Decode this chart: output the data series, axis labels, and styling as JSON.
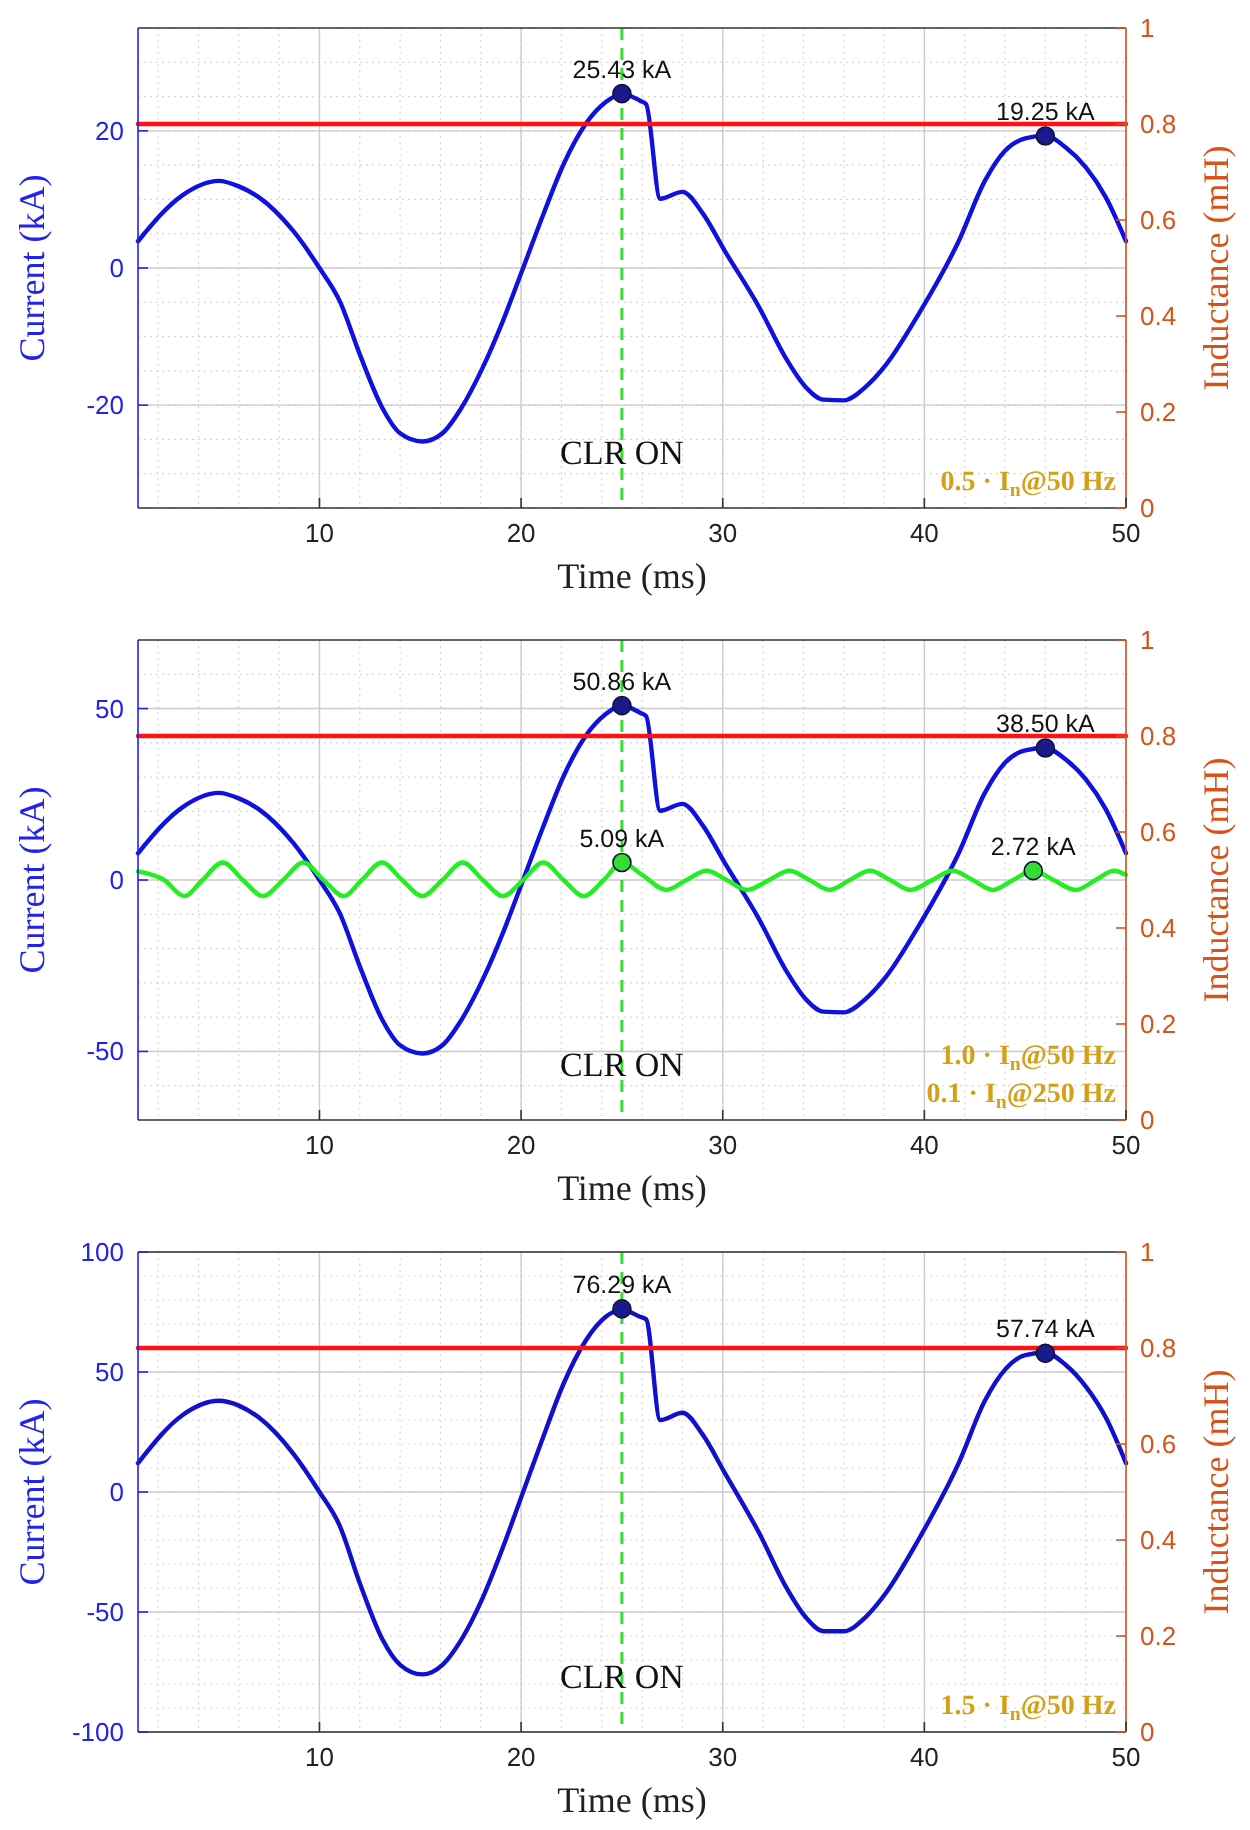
{
  "chart_data": [
    {
      "type": "line",
      "xlabel": "Time (ms)",
      "ylabel": "Current (kA)",
      "y2label": "Inductance (mH)",
      "xlim": [
        1,
        50
      ],
      "xticks": [
        10,
        20,
        30,
        40,
        50
      ],
      "ylim": [
        -35,
        35
      ],
      "yticks": [
        -20,
        0,
        20
      ],
      "y2lim": [
        0,
        1
      ],
      "y2ticks": [
        0,
        0.2,
        0.4,
        0.6,
        0.8,
        1
      ],
      "grid": true,
      "ref_lines": [
        {
          "axis": "x",
          "value": 25,
          "label": "CLR ON",
          "color": "#33dd33",
          "line_style": "dashed"
        }
      ],
      "annotations": [
        "0.5 · I$_{n}$@50 Hz"
      ],
      "series": [
        {
          "color": "#1111dd",
          "x": [
            1,
            3.2,
            5,
            6,
            7,
            8.7,
            10,
            11,
            12,
            13.1,
            14,
            15.1,
            16.1,
            17,
            18.1,
            19.1,
            20.1,
            21.1,
            22.1,
            23.2,
            24.2,
            25,
            25.9,
            26.2,
            26.9,
            28,
            29,
            30.1,
            31.8,
            33.1,
            34.1,
            35,
            36,
            37.1,
            38.1,
            39.7,
            41.7,
            43,
            44,
            45,
            46,
            47,
            48,
            49,
            50
          ],
          "values": [
            3.9,
            10.6,
            12.7,
            11.9,
            10.3,
            5.4,
            0,
            -4.8,
            -12.6,
            -20.3,
            -24.1,
            -25.3,
            -24.1,
            -20.6,
            -14.5,
            -7.7,
            0,
            7.8,
            15.1,
            21,
            24.2,
            25.4,
            24.4,
            23.9,
            10.1,
            11.1,
            8,
            2.5,
            -5.7,
            -13,
            -17.3,
            -19.2,
            -19.3,
            -17.3,
            -14.1,
            -6.8,
            3.9,
            12.7,
            17.1,
            18.9,
            19.3,
            17.6,
            14.7,
            10.3,
            3.9
          ]
        },
        {
          "axis": "y2",
          "color": "#ff1111",
          "x": [
            1,
            50
          ],
          "values": [
            0.8,
            0.8
          ]
        },
        {
          "type": "scatter",
          "marker": "circle",
          "color": "#1a1a8c",
          "x": [
            25,
            46
          ],
          "values": [
            25.43,
            19.25
          ],
          "value_labels": [
            "25.43 kA",
            "19.25 kA"
          ]
        }
      ]
    },
    {
      "type": "line",
      "xlabel": "Time (ms)",
      "ylabel": "Current (kA)",
      "y2label": "Inductance (mH)",
      "xlim": [
        1,
        50
      ],
      "xticks": [
        10,
        20,
        30,
        40,
        50
      ],
      "ylim": [
        -70,
        70
      ],
      "yticks": [
        -50,
        0,
        50
      ],
      "y2lim": [
        0,
        1
      ],
      "y2ticks": [
        0,
        0.2,
        0.4,
        0.6,
        0.8,
        1
      ],
      "grid": true,
      "ref_lines": [
        {
          "axis": "x",
          "value": 25,
          "label": "CLR ON",
          "color": "#33dd33",
          "line_style": "dashed"
        }
      ],
      "annotations": [
        "1.0 · I$_{n}$@50 Hz",
        "0.1 · I$_{n}$@250 Hz"
      ],
      "series": [
        {
          "color": "#1111dd",
          "x": [
            1,
            3.2,
            5,
            6,
            7,
            8.7,
            10,
            11,
            12,
            13.1,
            14,
            15.1,
            16.1,
            17,
            18.1,
            19.1,
            20.1,
            21.1,
            22.1,
            23.2,
            24.2,
            25,
            25.9,
            26.2,
            26.9,
            28,
            29,
            30.1,
            31.8,
            33.1,
            34.1,
            35,
            36,
            37.1,
            38.1,
            39.7,
            41.7,
            43,
            44,
            45,
            46,
            47,
            48,
            49,
            50
          ],
          "values": [
            7.8,
            21.2,
            25.4,
            23.8,
            20.6,
            10.8,
            0,
            -9.6,
            -25.2,
            -40.6,
            -48.2,
            -50.6,
            -48.2,
            -41.2,
            -29,
            -15.4,
            0,
            15.6,
            30.2,
            42,
            48.4,
            50.9,
            48.8,
            47.8,
            20.2,
            22.2,
            16,
            5,
            -11.4,
            -26,
            -34.6,
            -38.4,
            -38.6,
            -34.6,
            -28.2,
            -13.6,
            7.8,
            25.4,
            34.2,
            37.8,
            38.5,
            35.2,
            29.4,
            20.6,
            7.8
          ]
        },
        {
          "color": "#22ee22",
          "x": [
            1,
            2.3,
            3.3,
            4.2,
            5.2,
            6.2,
            7.2,
            8.2,
            9.2,
            10.2,
            11.2,
            12.1,
            13.1,
            14.1,
            15.1,
            16.1,
            17.1,
            18.1,
            19.1,
            20.1,
            21.1,
            22.1,
            23.1,
            24.1,
            25,
            26,
            27.2,
            28.2,
            29.2,
            30.2,
            31.2,
            32.3,
            33.3,
            34.3,
            35.3,
            36.3,
            37.3,
            38.3,
            39.3,
            40.4,
            41.4,
            42.4,
            43.4,
            44.4,
            45.4,
            46.4,
            47.5,
            48.5,
            49.4,
            50
          ],
          "values": [
            2.5,
            0,
            -4.7,
            0,
            5.1,
            0,
            -4.7,
            0,
            5.1,
            0,
            -4.7,
            0,
            5.1,
            0,
            -4.7,
            0,
            5.1,
            0,
            -4.7,
            0,
            5.1,
            0,
            -4.7,
            0,
            5.1,
            1.5,
            -2.9,
            0,
            2.7,
            0,
            -2.9,
            0,
            2.7,
            0,
            -2.9,
            0,
            2.7,
            0,
            -2.9,
            0,
            2.7,
            0,
            -2.9,
            0,
            2.7,
            0,
            -2.9,
            0,
            2.7,
            1.5
          ]
        },
        {
          "axis": "y2",
          "color": "#ff1111",
          "x": [
            1,
            50
          ],
          "values": [
            0.8,
            0.8
          ]
        },
        {
          "type": "scatter",
          "marker": "circle",
          "color": "#1a1a8c",
          "x": [
            25,
            46
          ],
          "values": [
            50.86,
            38.5
          ],
          "value_labels": [
            "50.86 kA",
            "38.50 kA"
          ]
        },
        {
          "type": "scatter",
          "marker": "circle",
          "color": "#33dd33",
          "x": [
            25,
            45.4
          ],
          "values": [
            5.09,
            2.72
          ],
          "value_labels": [
            "5.09 kA",
            "2.72 kA"
          ]
        }
      ]
    },
    {
      "type": "line",
      "xlabel": "Time (ms)",
      "ylabel": "Current (kA)",
      "y2label": "Inductance (mH)",
      "xlim": [
        1,
        50
      ],
      "xticks": [
        10,
        20,
        30,
        40,
        50
      ],
      "ylim": [
        -100,
        100
      ],
      "yticks": [
        -100,
        -50,
        0,
        50,
        100
      ],
      "y2lim": [
        0,
        1
      ],
      "y2ticks": [
        0,
        0.2,
        0.4,
        0.6,
        0.8,
        1
      ],
      "grid": true,
      "ref_lines": [
        {
          "axis": "x",
          "value": 25,
          "label": "CLR ON",
          "color": "#33dd33",
          "line_style": "dashed"
        }
      ],
      "annotations": [
        "1.5 · I$_{n}$@50 Hz"
      ],
      "series": [
        {
          "color": "#1111cc",
          "x": [
            1,
            3.2,
            5,
            6,
            7,
            8.7,
            10,
            11,
            12,
            13.1,
            14,
            15.1,
            16.1,
            17,
            18.1,
            19.1,
            20.1,
            21.1,
            22.1,
            23.2,
            24.2,
            25,
            25.9,
            26.2,
            26.9,
            28,
            29,
            30.1,
            31.8,
            33.1,
            34.1,
            35,
            36,
            37.1,
            38.1,
            39.7,
            41.7,
            43,
            44,
            45,
            46,
            47,
            48,
            49,
            50
          ],
          "values": [
            12,
            32,
            38,
            36,
            31,
            16,
            0,
            -14,
            -38,
            -61,
            -72,
            -76,
            -72,
            -62,
            -44,
            -23,
            0,
            23,
            45,
            63,
            73,
            76,
            73,
            72,
            30,
            33,
            24,
            8,
            -17,
            -39,
            -52,
            -58,
            -58,
            -52,
            -42,
            -20,
            12,
            38,
            51,
            57,
            58,
            53,
            44,
            31,
            12
          ]
        },
        {
          "axis": "y2",
          "color": "#ff1111",
          "x": [
            1,
            50
          ],
          "values": [
            0.8,
            0.8
          ]
        },
        {
          "type": "scatter",
          "marker": "circle",
          "color": "#1a1a8c",
          "x": [
            25,
            46
          ],
          "values": [
            76.29,
            57.74
          ],
          "value_labels": [
            "76.29 kA",
            "57.74 kA"
          ]
        }
      ]
    }
  ]
}
